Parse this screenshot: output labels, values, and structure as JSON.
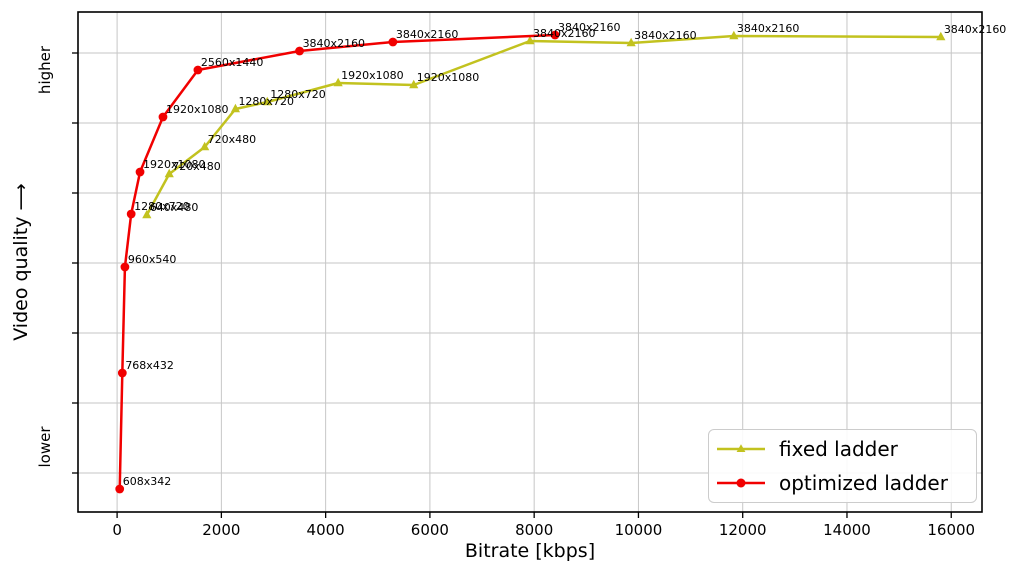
{
  "chart_data": {
    "type": "line",
    "title": "",
    "xlabel": "Bitrate [kbps]",
    "ylabel": "Video quality ⟶",
    "y_unit": "relative (axis unlabeled, higher/lower only)",
    "xlim": [
      -750,
      16590
    ],
    "ylim": [
      0,
      100
    ],
    "grid": true,
    "legend_position": "lower right",
    "x_ticks": [
      0,
      2000,
      4000,
      6000,
      8000,
      10000,
      12000,
      14000,
      16000
    ],
    "y_gridlines": [
      7.8,
      21.8,
      35.8,
      49.8,
      63.8,
      77.8,
      91.8
    ],
    "y_tick_labels": [
      {
        "label": "higher",
        "value": 88.4
      },
      {
        "label": "lower",
        "value": 13
      }
    ],
    "point_label_color": "#000000",
    "series": [
      {
        "name": "fixed ladder",
        "color": "#c2c21f",
        "marker": "triangle",
        "points": [
          {
            "x": 570,
            "y": 59.4,
            "label": "640x480"
          },
          {
            "x": 1000,
            "y": 67.6,
            "label": "720x480"
          },
          {
            "x": 1680,
            "y": 73.0,
            "label": "720x480"
          },
          {
            "x": 2270,
            "y": 80.6,
            "label": "1280x720"
          },
          {
            "x": 2880,
            "y": 82.0,
            "label": "1280x720"
          },
          {
            "x": 4240,
            "y": 85.8,
            "label": "1920x1080"
          },
          {
            "x": 5690,
            "y": 85.4,
            "label": "1920x1080"
          },
          {
            "x": 7920,
            "y": 94.2,
            "label": "3840x2160"
          },
          {
            "x": 9860,
            "y": 93.8,
            "label": "3840x2160"
          },
          {
            "x": 11830,
            "y": 95.2,
            "label": "3840x2160"
          },
          {
            "x": 15800,
            "y": 95.0,
            "label": "3840x2160"
          }
        ]
      },
      {
        "name": "optimized ladder",
        "color": "#f10000",
        "marker": "circle",
        "points": [
          {
            "x": 50,
            "y": 4.6,
            "label": "608x342"
          },
          {
            "x": 100,
            "y": 27.8,
            "label": "768x432"
          },
          {
            "x": 150,
            "y": 49.0,
            "label": "960x540"
          },
          {
            "x": 270,
            "y": 59.6,
            "label": "1280x720"
          },
          {
            "x": 440,
            "y": 68.0,
            "label": "1920x1080"
          },
          {
            "x": 880,
            "y": 79.0,
            "label": "1920x1080"
          },
          {
            "x": 1550,
            "y": 88.4,
            "label": "2560x1440"
          },
          {
            "x": 3500,
            "y": 92.2,
            "label": "3840x2160"
          },
          {
            "x": 5290,
            "y": 94.0,
            "label": "3840x2160"
          },
          {
            "x": 8400,
            "y": 95.4,
            "label": "3840x2160"
          }
        ]
      }
    ]
  }
}
